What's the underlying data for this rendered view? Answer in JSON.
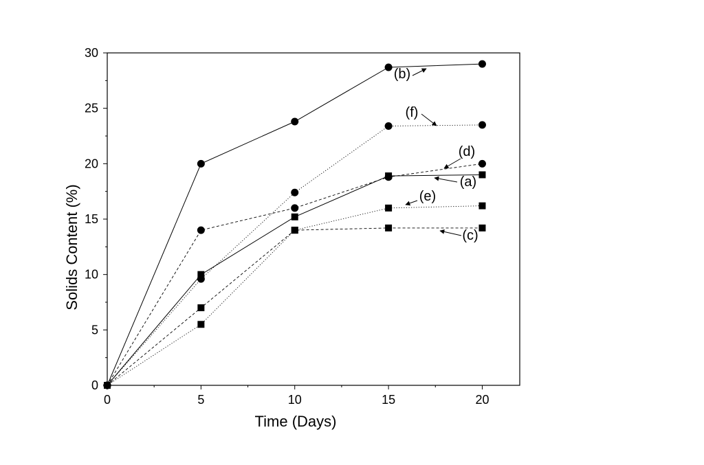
{
  "chart_data": {
    "type": "line",
    "xlabel": "Time (Days)",
    "ylabel": "Solids Content (%)",
    "xlim": [
      0,
      22
    ],
    "ylim": [
      0,
      30
    ],
    "xticks": [
      0,
      5,
      10,
      15,
      20
    ],
    "yticks": [
      0,
      5,
      10,
      15,
      20,
      25,
      30
    ],
    "grid": false,
    "x": [
      0,
      5,
      10,
      15,
      20
    ],
    "series": [
      {
        "label": "(a)",
        "values": [
          0,
          10,
          15.2,
          18.9,
          19.0
        ],
        "marker": "square",
        "line": "solid"
      },
      {
        "label": "(b)",
        "values": [
          0,
          20,
          23.8,
          28.7,
          29.0
        ],
        "marker": "circle",
        "line": "solid"
      },
      {
        "label": "(c)",
        "values": [
          0,
          7,
          14.0,
          14.2,
          14.2
        ],
        "marker": "square",
        "line": "dashed"
      },
      {
        "label": "(d)",
        "values": [
          0,
          14,
          16.0,
          18.8,
          20.0
        ],
        "marker": "circle",
        "line": "dashed"
      },
      {
        "label": "(e)",
        "values": [
          0,
          5.5,
          14.0,
          16.0,
          16.2
        ],
        "marker": "square",
        "line": "dotted"
      },
      {
        "label": "(f)",
        "values": [
          0,
          9.6,
          17.4,
          23.4,
          23.5
        ],
        "marker": "circle",
        "line": "dotted"
      }
    ]
  }
}
